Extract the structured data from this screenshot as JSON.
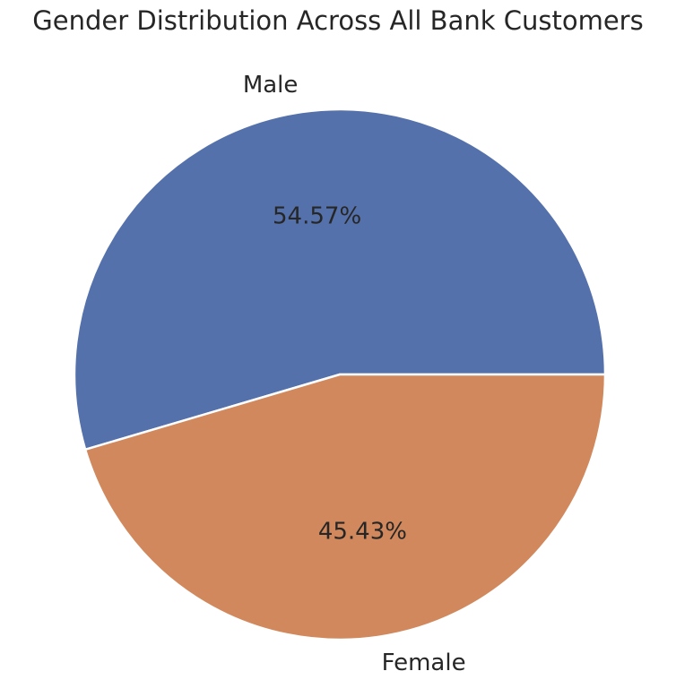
{
  "chart_data": {
    "type": "pie",
    "title": "Gender Distribution Across All Bank Customers",
    "categories": [
      "Male",
      "Female"
    ],
    "values": [
      54.57,
      45.43
    ],
    "value_labels": [
      "54.57%",
      "45.43%"
    ],
    "colors": [
      "#5471AB",
      "#D1885C"
    ],
    "start_angle_deg": 0,
    "direction": "counterclockwise"
  }
}
